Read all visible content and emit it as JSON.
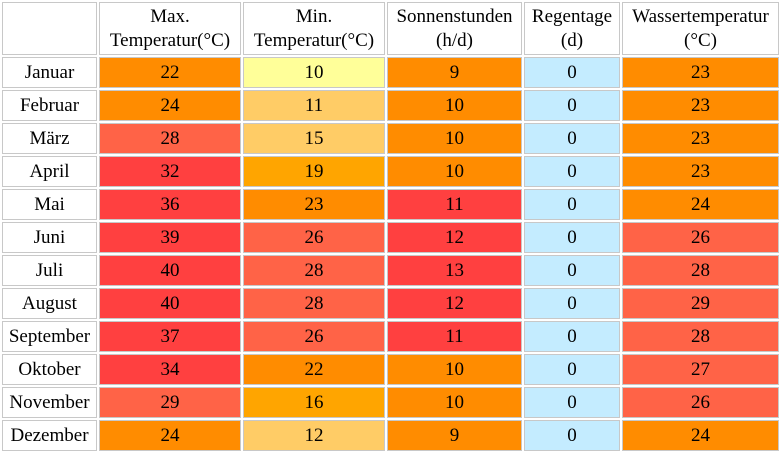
{
  "colors": {
    "yellow": "#ffff99",
    "light_orange": "#ffcc66",
    "gold": "#ffa500",
    "orange": "#ff8c00",
    "coral": "#ff6347",
    "red": "#ff4040",
    "light_blue": "#c4ecff",
    "white": "#ffffff",
    "border": "#c8c8c8"
  },
  "headers": [
    {
      "line1": "Max.",
      "line2": "Temperatur(°C)"
    },
    {
      "line1": "Min.",
      "line2": "Temperatur(°C)"
    },
    {
      "line1": "Sonnenstunden",
      "line2": "(h/d)"
    },
    {
      "line1": "Regentage",
      "line2": "(d)"
    },
    {
      "line1": "Wassertemperatur",
      "line2": "(°C)"
    }
  ],
  "rows": [
    {
      "month": "Januar",
      "cells": [
        {
          "v": "22",
          "c": "orange"
        },
        {
          "v": "10",
          "c": "yellow"
        },
        {
          "v": "9",
          "c": "orange"
        },
        {
          "v": "0",
          "c": "light_blue"
        },
        {
          "v": "23",
          "c": "orange"
        }
      ]
    },
    {
      "month": "Februar",
      "cells": [
        {
          "v": "24",
          "c": "orange"
        },
        {
          "v": "11",
          "c": "light_orange"
        },
        {
          "v": "10",
          "c": "orange"
        },
        {
          "v": "0",
          "c": "light_blue"
        },
        {
          "v": "23",
          "c": "orange"
        }
      ]
    },
    {
      "month": "März",
      "cells": [
        {
          "v": "28",
          "c": "coral"
        },
        {
          "v": "15",
          "c": "light_orange"
        },
        {
          "v": "10",
          "c": "orange"
        },
        {
          "v": "0",
          "c": "light_blue"
        },
        {
          "v": "23",
          "c": "orange"
        }
      ]
    },
    {
      "month": "April",
      "cells": [
        {
          "v": "32",
          "c": "red"
        },
        {
          "v": "19",
          "c": "gold"
        },
        {
          "v": "10",
          "c": "orange"
        },
        {
          "v": "0",
          "c": "light_blue"
        },
        {
          "v": "23",
          "c": "orange"
        }
      ]
    },
    {
      "month": "Mai",
      "cells": [
        {
          "v": "36",
          "c": "red"
        },
        {
          "v": "23",
          "c": "orange"
        },
        {
          "v": "11",
          "c": "red"
        },
        {
          "v": "0",
          "c": "light_blue"
        },
        {
          "v": "24",
          "c": "orange"
        }
      ]
    },
    {
      "month": "Juni",
      "cells": [
        {
          "v": "39",
          "c": "red"
        },
        {
          "v": "26",
          "c": "coral"
        },
        {
          "v": "12",
          "c": "red"
        },
        {
          "v": "0",
          "c": "light_blue"
        },
        {
          "v": "26",
          "c": "coral"
        }
      ]
    },
    {
      "month": "Juli",
      "cells": [
        {
          "v": "40",
          "c": "red"
        },
        {
          "v": "28",
          "c": "coral"
        },
        {
          "v": "13",
          "c": "red"
        },
        {
          "v": "0",
          "c": "light_blue"
        },
        {
          "v": "28",
          "c": "coral"
        }
      ]
    },
    {
      "month": "August",
      "cells": [
        {
          "v": "40",
          "c": "red"
        },
        {
          "v": "28",
          "c": "coral"
        },
        {
          "v": "12",
          "c": "red"
        },
        {
          "v": "0",
          "c": "light_blue"
        },
        {
          "v": "29",
          "c": "coral"
        }
      ]
    },
    {
      "month": "September",
      "cells": [
        {
          "v": "37",
          "c": "red"
        },
        {
          "v": "26",
          "c": "coral"
        },
        {
          "v": "11",
          "c": "red"
        },
        {
          "v": "0",
          "c": "light_blue"
        },
        {
          "v": "28",
          "c": "coral"
        }
      ]
    },
    {
      "month": "Oktober",
      "cells": [
        {
          "v": "34",
          "c": "red"
        },
        {
          "v": "22",
          "c": "orange"
        },
        {
          "v": "10",
          "c": "orange"
        },
        {
          "v": "0",
          "c": "light_blue"
        },
        {
          "v": "27",
          "c": "coral"
        }
      ]
    },
    {
      "month": "November",
      "cells": [
        {
          "v": "29",
          "c": "coral"
        },
        {
          "v": "16",
          "c": "gold"
        },
        {
          "v": "10",
          "c": "orange"
        },
        {
          "v": "0",
          "c": "light_blue"
        },
        {
          "v": "26",
          "c": "coral"
        }
      ]
    },
    {
      "month": "Dezember",
      "cells": [
        {
          "v": "24",
          "c": "orange"
        },
        {
          "v": "12",
          "c": "light_orange"
        },
        {
          "v": "9",
          "c": "orange"
        },
        {
          "v": "0",
          "c": "light_blue"
        },
        {
          "v": "24",
          "c": "orange"
        }
      ]
    }
  ]
}
